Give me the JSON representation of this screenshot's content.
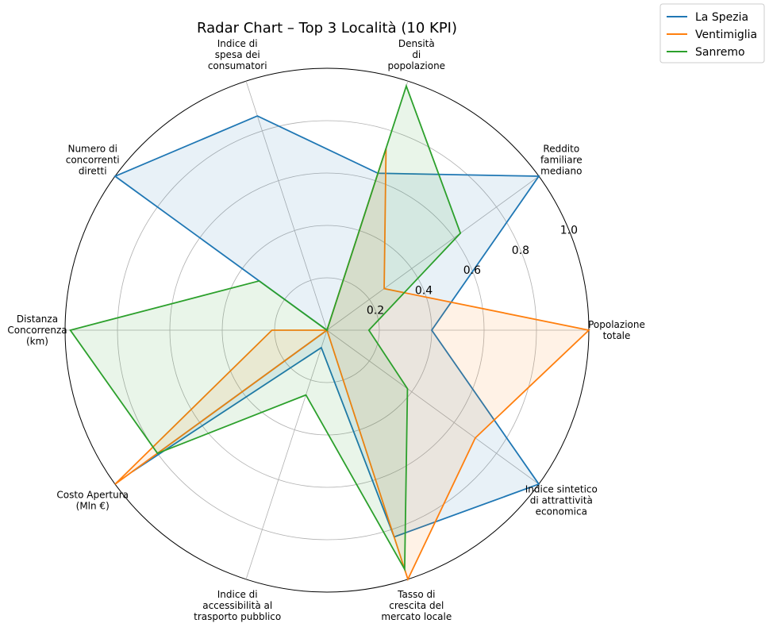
{
  "chart_data": {
    "type": "radar",
    "title": "Radar Chart – Top 3 Località (10 KPI)",
    "axes": [
      [
        "Popolazione",
        "totale"
      ],
      [
        "Reddito",
        "familiare",
        "mediano"
      ],
      [
        "Densità",
        "di",
        "popolazione"
      ],
      [
        "Indice di",
        "spesa dei",
        "consumatori"
      ],
      [
        "Numero di",
        "concorrenti",
        "diretti"
      ],
      [
        "Distanza",
        "Concorrenza",
        "(km)"
      ],
      [
        "Costo Apertura",
        "(Mln €)"
      ],
      [
        "Indice di",
        "accessibilità al",
        "trasporto pubblico"
      ],
      [
        "Tasso di",
        "crescita del",
        "mercato locale"
      ],
      [
        "Indice sintetico",
        "di attrattività",
        "economica"
      ]
    ],
    "rlim": [
      0,
      1.0
    ],
    "rticks": [
      "0.2",
      "0.4",
      "0.6",
      "0.8",
      "1.0"
    ],
    "rtick_values": [
      0.2,
      0.4,
      0.6,
      0.8,
      1.0
    ],
    "grid": true,
    "legend_position": "top-right",
    "series": [
      {
        "name": "La Spezia",
        "color": "#1f77b4",
        "values": [
          0.4,
          1.0,
          0.63,
          0.86,
          1.0,
          0.0,
          0.92,
          0.07,
          0.83,
          1.0
        ]
      },
      {
        "name": "Ventimiglia",
        "color": "#ff7f0e",
        "values": [
          1.0,
          0.27,
          0.73,
          0.0,
          0.0,
          0.21,
          1.0,
          0.0,
          1.0,
          0.7
        ]
      },
      {
        "name": "Sanremo",
        "color": "#2ca02c",
        "values": [
          0.16,
          0.63,
          0.98,
          0.0,
          0.32,
          0.98,
          0.8,
          0.26,
          0.96,
          0.38
        ]
      }
    ]
  }
}
